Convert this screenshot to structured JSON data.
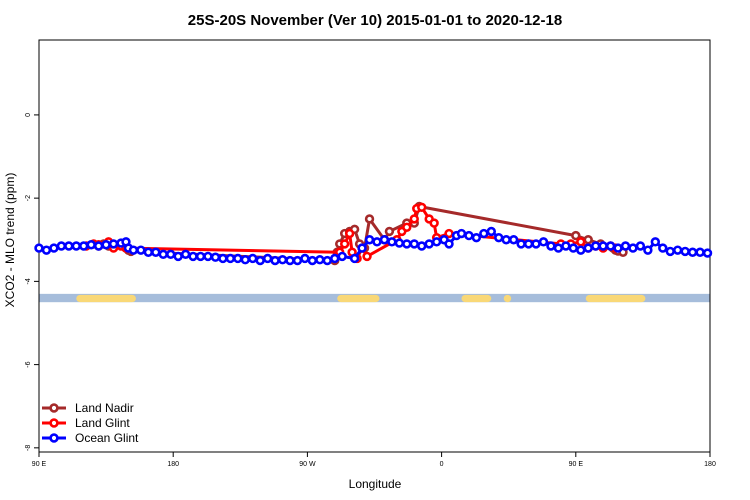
{
  "chart_data": {
    "type": "line",
    "title": "25S-20S November (Ver 10)   2015-01-01 to 2020-12-18",
    "xlabel": "Longitude",
    "ylabel": "XCO2 - MLO trend (ppm)",
    "xlim": [
      -90,
      180
    ],
    "ylim": [
      -8.1,
      1.8
    ],
    "x_ticks": [
      {
        "value": -90,
        "label": "90 E"
      },
      {
        "value": -36,
        "label": "180"
      },
      {
        "value": 18,
        "label": "90 W"
      },
      {
        "value": 72,
        "label": "0"
      },
      {
        "value": 126,
        "label": "90 E"
      },
      {
        "value": 180,
        "label": "180"
      }
    ],
    "y_ticks": [
      {
        "value": 0,
        "label": "0"
      },
      {
        "value": -2,
        "label": "-2"
      },
      {
        "value": -4,
        "label": "-4"
      },
      {
        "value": -6,
        "label": "-6"
      },
      {
        "value": -8,
        "label": "-8"
      }
    ],
    "legend_position": "bottom-left",
    "series": [
      {
        "name": "Land Nadir",
        "color": "#a52a2a",
        "x": [
          -66,
          -64,
          -62,
          -55,
          -54,
          -53,
          29,
          30,
          31,
          33,
          35,
          37,
          39,
          41,
          43,
          49,
          51,
          58,
          61,
          63,
          126,
          131,
          136,
          141,
          142,
          143,
          145
        ],
        "y": [
          -3.15,
          -3.1,
          -3.15,
          -3.2,
          -3.25,
          -3.28,
          -3.5,
          -3.3,
          -3.1,
          -2.85,
          -2.8,
          -2.75,
          -3.1,
          -3.2,
          -2.5,
          -3.0,
          -2.8,
          -2.6,
          -2.6,
          -2.2,
          -2.9,
          -3.0,
          -3.1,
          -3.2,
          -3.25,
          -3.27,
          -3.3
        ]
      },
      {
        "name": "Land Glint",
        "color": "#ff0000",
        "x": [
          -71,
          -68,
          -66,
          -62,
          -60,
          -57,
          -55,
          31,
          33,
          35,
          36,
          38,
          40,
          42,
          54,
          56,
          58,
          61,
          62,
          64,
          67,
          69,
          70,
          75,
          120,
          124,
          128,
          131,
          134,
          137,
          140,
          142
        ],
        "y": [
          -3.15,
          -3.1,
          -3.12,
          -3.05,
          -3.2,
          -3.15,
          -3.2,
          -3.3,
          -3.1,
          -2.85,
          -3.3,
          -3.45,
          -3.2,
          -3.4,
          -3.0,
          -2.8,
          -2.7,
          -2.5,
          -2.25,
          -2.22,
          -2.5,
          -2.6,
          -2.95,
          -2.85,
          -3.1,
          -3.1,
          -3.05,
          -3.2,
          -3.15,
          -3.2,
          -3.15,
          -3.2
        ]
      },
      {
        "name": "Ocean Glint",
        "color": "#0000ff",
        "x": [
          -90,
          -87,
          -84,
          -81,
          -78,
          -75,
          -72,
          -69,
          -66,
          -63,
          -60,
          -57,
          -55,
          -54,
          -52,
          -49,
          -46,
          -43,
          -40,
          -37,
          -34,
          -31,
          -28,
          -25,
          -22,
          -19,
          -16,
          -13,
          -10,
          -7,
          -4,
          -1,
          2,
          5,
          8,
          11,
          14,
          17,
          20,
          23,
          26,
          29,
          32,
          37,
          40,
          43,
          46,
          49,
          52,
          55,
          58,
          61,
          64,
          67,
          70,
          73,
          75,
          78,
          80,
          83,
          86,
          89,
          92,
          95,
          98,
          101,
          104,
          107,
          110,
          113,
          116,
          119,
          122,
          125,
          128,
          131,
          134,
          137,
          140,
          143,
          146,
          149,
          152,
          155,
          158,
          161,
          164,
          167,
          170,
          173,
          176,
          179
        ],
        "y": [
          -3.2,
          -3.25,
          -3.2,
          -3.15,
          -3.15,
          -3.15,
          -3.15,
          -3.12,
          -3.15,
          -3.12,
          -3.1,
          -3.08,
          -3.05,
          -3.2,
          -3.25,
          -3.25,
          -3.3,
          -3.3,
          -3.35,
          -3.35,
          -3.4,
          -3.35,
          -3.4,
          -3.4,
          -3.4,
          -3.42,
          -3.45,
          -3.45,
          -3.45,
          -3.48,
          -3.45,
          -3.5,
          -3.45,
          -3.5,
          -3.48,
          -3.5,
          -3.5,
          -3.45,
          -3.5,
          -3.48,
          -3.5,
          -3.45,
          -3.4,
          -3.45,
          -3.2,
          -3.0,
          -3.05,
          -3.0,
          -3.05,
          -3.08,
          -3.1,
          -3.1,
          -3.15,
          -3.1,
          -3.05,
          -3.0,
          -3.1,
          -2.9,
          -2.85,
          -2.9,
          -2.95,
          -2.85,
          -2.8,
          -2.95,
          -3.0,
          -3.0,
          -3.1,
          -3.1,
          -3.1,
          -3.05,
          -3.15,
          -3.2,
          -3.15,
          -3.2,
          -3.25,
          -3.2,
          -3.15,
          -3.15,
          -3.15,
          -3.2,
          -3.15,
          -3.2,
          -3.15,
          -3.25,
          -3.05,
          -3.2,
          -3.28,
          -3.25,
          -3.28,
          -3.3,
          -3.3,
          -3.32
        ]
      }
    ],
    "land_mask": {
      "band_y": [
        -4.3,
        -4.5
      ],
      "ocean_color": "#a6bddb",
      "land_color": "#f9d877",
      "land_segments": [
        [
          -75,
          -51
        ],
        [
          30,
          47
        ],
        [
          80,
          92
        ],
        [
          97,
          100
        ],
        [
          130,
          154
        ]
      ]
    }
  }
}
